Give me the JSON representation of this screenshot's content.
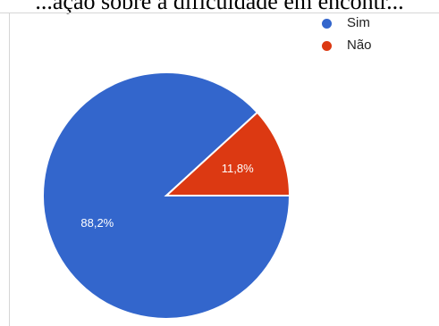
{
  "caption": "...ação sobre a dificuldade em encontr...",
  "chart_data": {
    "type": "pie",
    "slices": [
      {
        "label": "Sim",
        "value": 88.2,
        "display": "88,2%",
        "color": "#3366cc"
      },
      {
        "label": "Não",
        "value": 11.8,
        "display": "11,8%",
        "color": "#dc3912"
      }
    ],
    "legend_position": "top-right"
  }
}
